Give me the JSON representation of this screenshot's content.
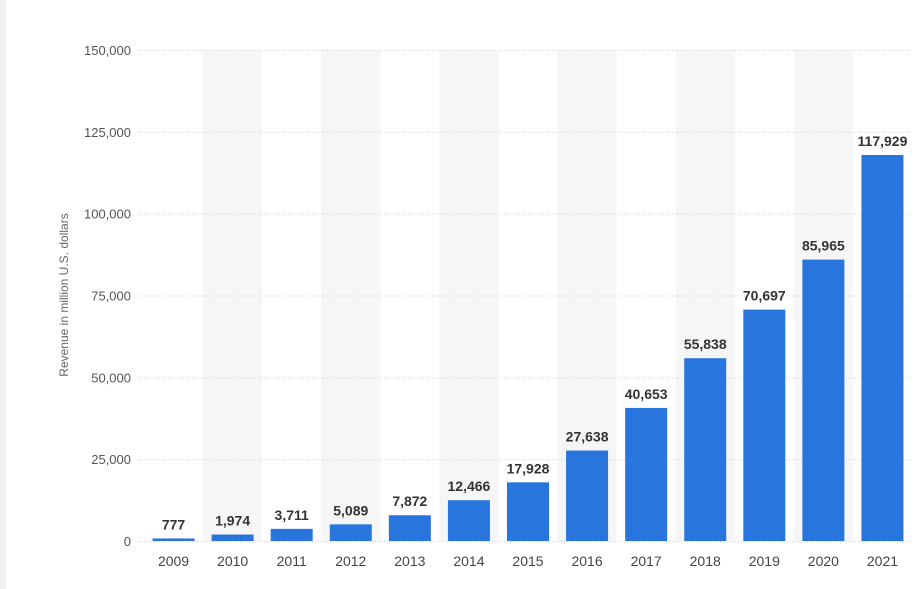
{
  "chart_data": {
    "type": "bar",
    "title": "",
    "xlabel": "",
    "ylabel": "Revenue in million U.S. dollars",
    "categories": [
      "2009",
      "2010",
      "2011",
      "2012",
      "2013",
      "2014",
      "2015",
      "2016",
      "2017",
      "2018",
      "2019",
      "2020",
      "2021"
    ],
    "values": [
      777,
      1974,
      3711,
      5089,
      7872,
      12466,
      17928,
      27638,
      40653,
      55838,
      70697,
      85965,
      117929
    ],
    "value_labels": [
      "777",
      "1,974",
      "3,711",
      "5,089",
      "7,872",
      "12,466",
      "17,928",
      "27,638",
      "40,653",
      "55,838",
      "70,697",
      "85,965",
      "117,929"
    ],
    "ylim": [
      0,
      150000
    ],
    "yticks": [
      0,
      25000,
      50000,
      75000,
      100000,
      125000,
      150000
    ],
    "ytick_labels": [
      "0",
      "25,000",
      "50,000",
      "75,000",
      "100,000",
      "125,000",
      "150,000"
    ],
    "grid": true,
    "legend": "none",
    "colors": {
      "bar": "#2876dd",
      "band": "#f6f6f6",
      "grid": "#cfcfcf"
    }
  }
}
